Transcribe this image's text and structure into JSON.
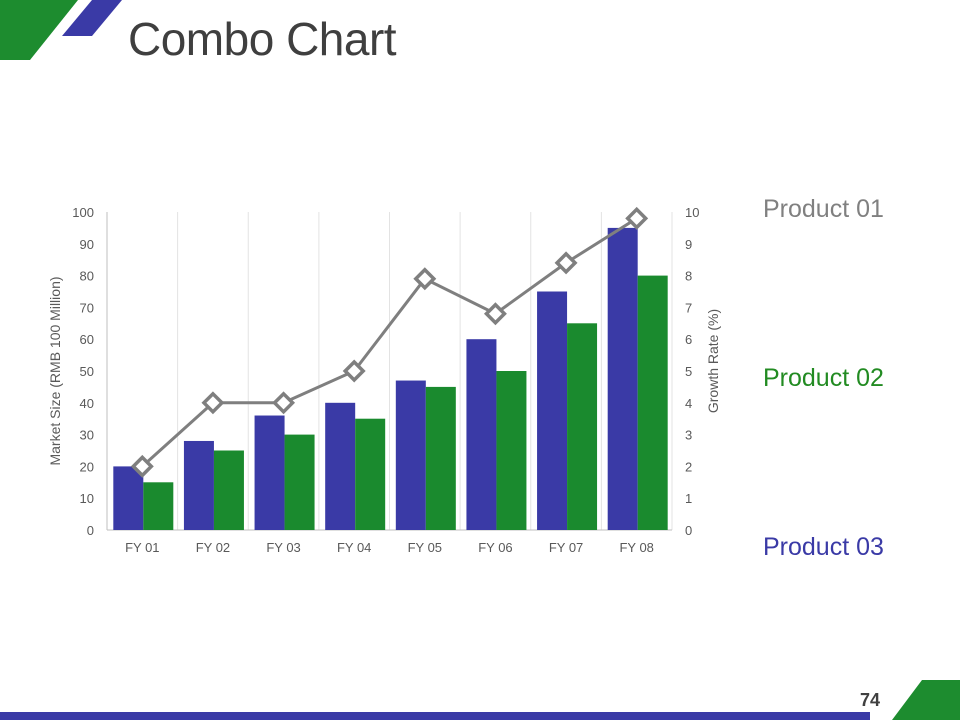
{
  "slide": {
    "title": "Combo Chart",
    "page_number": "74",
    "legend": [
      {
        "label": "Product 01",
        "color": "#808080"
      },
      {
        "label": "Product 02",
        "color": "#228b22"
      },
      {
        "label": "Product 03",
        "color": "#3a3aa6"
      }
    ]
  },
  "colors": {
    "accent_green": "#1d8c2f",
    "accent_blue": "#3a3aa6",
    "series_blue": "#3a3aa6",
    "series_green": "#1a8a2e",
    "line_gray": "#7f7f7f"
  },
  "chart_data": {
    "type": "combo",
    "categories": [
      "FY 01",
      "FY 02",
      "FY 03",
      "FY 04",
      "FY 05",
      "FY 06",
      "FY 07",
      "FY 08"
    ],
    "series": [
      {
        "name": "Product 03",
        "type": "bar",
        "axis": "left",
        "color": "#3a3aa6",
        "values": [
          20,
          28,
          36,
          40,
          47,
          60,
          75,
          95
        ]
      },
      {
        "name": "Product 02",
        "type": "bar",
        "axis": "left",
        "color": "#1a8a2e",
        "values": [
          15,
          25,
          30,
          35,
          45,
          50,
          65,
          80
        ]
      },
      {
        "name": "Product 01",
        "type": "line",
        "axis": "right",
        "color": "#7f7f7f",
        "values": [
          2,
          4,
          4,
          5,
          7.9,
          6.8,
          8.4,
          9.8
        ]
      }
    ],
    "ylabel": "Market Size (RMB 100 Million)",
    "y2label": "Growth Rate (%)",
    "ylim": [
      0,
      100
    ],
    "y2lim": [
      0,
      10
    ],
    "yticks": [
      "0",
      "10",
      "20",
      "30",
      "40",
      "50",
      "60",
      "70",
      "80",
      "90",
      "100"
    ],
    "y2ticks": [
      "0",
      "1",
      "2",
      "3",
      "4",
      "5",
      "6",
      "7",
      "8",
      "9",
      "10"
    ],
    "grid": "vertical"
  }
}
